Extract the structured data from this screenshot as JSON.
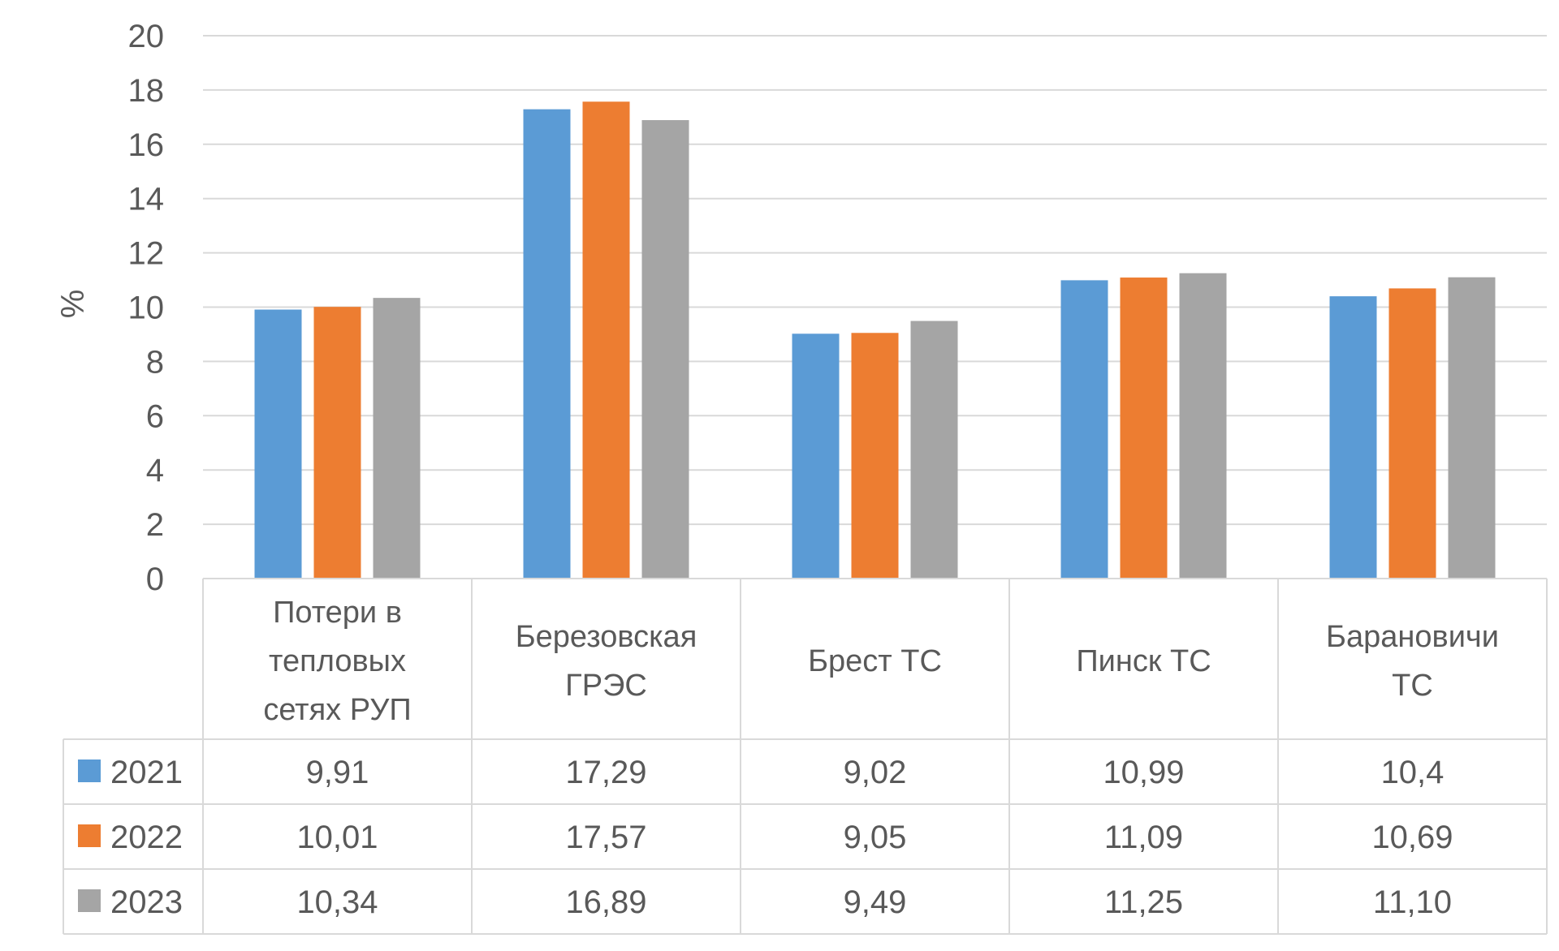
{
  "chart_data": {
    "type": "bar",
    "title": "",
    "xlabel": "",
    "ylabel": "%",
    "ylim": [
      0,
      20
    ],
    "ytick_step": 2,
    "grid": true,
    "legend": "data-table",
    "data_table": true,
    "categories": [
      [
        "Потери в",
        "тепловых",
        "сетях РУП"
      ],
      [
        "Березовская",
        "ГРЭС"
      ],
      [
        "Брест ТС"
      ],
      [
        "Пинск ТС"
      ],
      [
        "Барановичи",
        "ТС"
      ]
    ],
    "series": [
      {
        "name": "2021",
        "color": "#5B9BD5",
        "values": [
          9.91,
          17.29,
          9.02,
          10.99,
          10.4
        ],
        "labels": [
          "9,91",
          "17,29",
          "9,02",
          "10,99",
          "10,4"
        ]
      },
      {
        "name": "2022",
        "color": "#ED7D31",
        "values": [
          10.01,
          17.57,
          9.05,
          11.09,
          10.69
        ],
        "labels": [
          "10,01",
          "17,57",
          "9,05",
          "11,09",
          "10,69"
        ]
      },
      {
        "name": "2023",
        "color": "#A5A5A5",
        "values": [
          10.34,
          16.89,
          9.49,
          11.25,
          11.1
        ],
        "labels": [
          "10,34",
          "16,89",
          "9,49",
          "11,25",
          "11,10"
        ]
      }
    ]
  }
}
